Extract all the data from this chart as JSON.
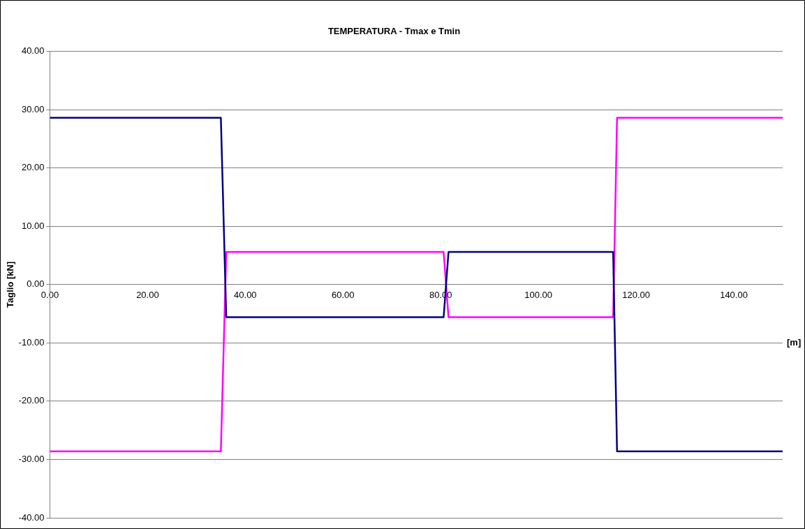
{
  "chart_data": {
    "type": "line",
    "title": "TEMPERATURA - Tmax e Tmin",
    "xlabel": "[m]",
    "ylabel": "Taglio [kN]",
    "xlim": [
      0,
      150
    ],
    "xticks": [
      {
        "value": 0,
        "label": "0.00"
      },
      {
        "value": 20,
        "label": "20.00"
      },
      {
        "value": 40,
        "label": "40.00"
      },
      {
        "value": 60,
        "label": "60.00"
      },
      {
        "value": 80,
        "label": "80.00"
      },
      {
        "value": 100,
        "label": "100.00"
      },
      {
        "value": 120,
        "label": "120.00"
      },
      {
        "value": 140,
        "label": "140.00"
      }
    ],
    "ylim": [
      -40,
      40
    ],
    "yticks": [
      {
        "value": -40,
        "label": "-40.00"
      },
      {
        "value": -30,
        "label": "-30.00"
      },
      {
        "value": -20,
        "label": "-20.00"
      },
      {
        "value": -10,
        "label": "-10.00"
      },
      {
        "value": 0,
        "label": "0.00"
      },
      {
        "value": 10,
        "label": "10.00"
      },
      {
        "value": 20,
        "label": "20.00"
      },
      {
        "value": 30,
        "label": "30.00"
      },
      {
        "value": 40,
        "label": "40.00"
      }
    ],
    "grid": "y",
    "legend": false,
    "marker": "none",
    "line_style": "solid",
    "series": [
      {
        "color": "#000080",
        "x": [
          0,
          35.0,
          36.1,
          80.6,
          81.6,
          115.3,
          116.1,
          150
        ],
        "values": [
          28.6,
          28.6,
          -5.6,
          -5.6,
          5.6,
          5.6,
          -28.6,
          -28.6
        ]
      },
      {
        "color": "#ff00ff",
        "x": [
          0,
          35.0,
          36.1,
          80.6,
          81.6,
          115.3,
          116.1,
          150
        ],
        "values": [
          -28.6,
          -28.6,
          5.6,
          5.6,
          -5.6,
          -5.6,
          28.6,
          28.6
        ]
      }
    ]
  }
}
